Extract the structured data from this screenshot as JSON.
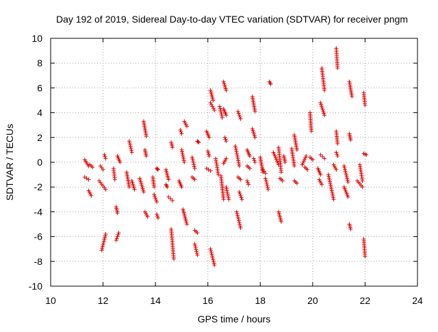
{
  "chart_data": {
    "type": "scatter",
    "title": "Day 192 of 2019, Sidereal Day-to-day VTEC variation (SDTVAR) for receiver pngm",
    "xlabel": "GPS time / hours",
    "ylabel": "SDTVAR / TECUs",
    "xlim": [
      10,
      24
    ],
    "ylim": [
      -10,
      10
    ],
    "xticks": [
      "10",
      "12",
      "14",
      "16",
      "18",
      "20",
      "22",
      "24"
    ],
    "yticks": [
      "10",
      "8",
      "6",
      "4",
      "2",
      "0",
      "-2",
      "-4",
      "-6",
      "-8",
      "-10"
    ],
    "grid": true,
    "marker": "+",
    "color": "#e00000",
    "series": [
      {
        "name": "SDTVAR",
        "tracks": [
          [
            11.3,
            0.2,
            11.45,
            -0.3
          ],
          [
            11.3,
            -1.2,
            11.45,
            -1.4
          ],
          [
            11.45,
            -2.3,
            11.55,
            -2.7
          ],
          [
            11.5,
            -0.2,
            11.6,
            -0.4
          ],
          [
            11.9,
            -0.3,
            12.0,
            -0.6
          ],
          [
            11.85,
            -1.5,
            12.1,
            -2.2
          ],
          [
            11.95,
            -7.1,
            12.1,
            -5.8
          ],
          [
            12.05,
            0.6,
            12.1,
            0.3
          ],
          [
            12.4,
            -0.5,
            12.45,
            -1.4
          ],
          [
            12.5,
            -3.6,
            12.55,
            -4.1
          ],
          [
            12.5,
            -6.3,
            12.6,
            -5.7
          ],
          [
            12.55,
            0.5,
            12.65,
            0.0
          ],
          [
            12.9,
            -0.8,
            13.0,
            -2.0
          ],
          [
            13.0,
            1.7,
            13.1,
            0.8
          ],
          [
            13.1,
            -1.5,
            13.2,
            -2.2
          ],
          [
            13.4,
            -1.3,
            13.55,
            -2.4
          ],
          [
            13.55,
            3.3,
            13.65,
            2.1
          ],
          [
            13.6,
            1.0,
            13.65,
            0.5
          ],
          [
            13.6,
            -4.0,
            13.7,
            -4.4
          ],
          [
            13.9,
            -1.2,
            13.95,
            -2.0
          ],
          [
            13.95,
            -2.6,
            14.05,
            -3.2
          ],
          [
            14.05,
            -4.2,
            14.1,
            -4.5
          ],
          [
            14.05,
            -0.5,
            14.1,
            -0.6
          ],
          [
            14.4,
            -0.6,
            14.5,
            -1.4
          ],
          [
            14.4,
            -1.8,
            14.45,
            -2.0
          ],
          [
            14.5,
            -2.8,
            14.65,
            -3.1
          ],
          [
            14.6,
            -5.4,
            14.7,
            -7.8
          ],
          [
            14.6,
            1.6,
            14.65,
            1.2
          ],
          [
            14.9,
            -1.5,
            15.0,
            -2.0
          ],
          [
            14.95,
            2.6,
            15.0,
            2.3
          ],
          [
            15.0,
            1.0,
            15.1,
            0.0
          ],
          [
            15.1,
            3.3,
            15.2,
            2.9
          ],
          [
            15.05,
            -3.8,
            15.2,
            -5.0
          ],
          [
            15.4,
            0.4,
            15.5,
            -0.5
          ],
          [
            15.4,
            -1.2,
            15.5,
            -1.4
          ],
          [
            15.6,
            1.7,
            15.65,
            1.6
          ],
          [
            15.5,
            -5.5,
            15.6,
            -5.7
          ],
          [
            15.5,
            -6.6,
            15.6,
            -7.5
          ],
          [
            15.95,
            2.5,
            16.05,
            2.0
          ],
          [
            16.0,
            0.9,
            16.05,
            0.5
          ],
          [
            15.95,
            -0.5,
            16.1,
            -0.7
          ],
          [
            16.1,
            5.8,
            16.2,
            5.0
          ],
          [
            16.1,
            4.8,
            16.25,
            4.2
          ],
          [
            16.1,
            -7.0,
            16.25,
            -8.3
          ],
          [
            16.3,
            0.3,
            16.4,
            -1.0
          ],
          [
            16.5,
            -1.1,
            16.6,
            -3.0
          ],
          [
            16.45,
            4.5,
            16.55,
            3.6
          ],
          [
            16.6,
            6.5,
            16.7,
            5.8
          ],
          [
            16.6,
            4.3,
            16.7,
            3.8
          ],
          [
            16.65,
            2.0,
            16.7,
            1.7
          ],
          [
            16.7,
            -2.0,
            16.8,
            -3.0
          ],
          [
            16.6,
            -0.1,
            16.7,
            0.3
          ],
          [
            17.05,
            1.3,
            17.2,
            -0.3
          ],
          [
            17.15,
            -1.2,
            17.25,
            -1.4
          ],
          [
            17.15,
            4.1,
            17.25,
            3.5
          ],
          [
            17.1,
            -4.0,
            17.25,
            -5.3
          ],
          [
            17.2,
            -2.4,
            17.3,
            -3.0
          ],
          [
            17.5,
            1.0,
            17.6,
            0.5
          ],
          [
            17.5,
            -0.3,
            17.6,
            -0.5
          ],
          [
            17.5,
            -1.5,
            17.55,
            -1.8
          ],
          [
            17.7,
            5.3,
            17.8,
            4.1
          ],
          [
            17.7,
            2.7,
            17.8,
            2.0
          ],
          [
            17.75,
            0.3,
            17.8,
            0.0
          ],
          [
            18.0,
            0.4,
            18.1,
            -0.8
          ],
          [
            18.1,
            -0.6,
            18.2,
            -0.9
          ],
          [
            18.2,
            -1.3,
            18.3,
            -2.2
          ],
          [
            18.35,
            6.5,
            18.4,
            6.3
          ],
          [
            18.5,
            0.8,
            18.7,
            -0.2
          ],
          [
            18.7,
            1.2,
            18.8,
            -0.8
          ],
          [
            18.7,
            -4.0,
            18.8,
            -4.8
          ],
          [
            18.75,
            -1.3,
            18.85,
            -1.5
          ],
          [
            18.9,
            0.5,
            18.95,
            0.0
          ],
          [
            19.2,
            1.1,
            19.3,
            -0.3
          ],
          [
            19.3,
            2.2,
            19.4,
            1.0
          ],
          [
            19.3,
            -1.5,
            19.4,
            -1.7
          ],
          [
            19.6,
            -0.2,
            19.75,
            0.5
          ],
          [
            19.7,
            -0.4,
            19.8,
            -0.6
          ],
          [
            19.9,
            4.0,
            19.95,
            2.5
          ],
          [
            19.9,
            0.4,
            20.0,
            0.2
          ],
          [
            20.2,
            -0.5,
            20.3,
            -1.0
          ],
          [
            20.25,
            -1.4,
            20.35,
            -1.8
          ],
          [
            20.3,
            0.6,
            20.45,
            0.3
          ],
          [
            20.35,
            7.6,
            20.45,
            5.8
          ],
          [
            20.3,
            4.8,
            20.45,
            3.8
          ],
          [
            20.6,
            -1.0,
            20.8,
            -3.0
          ],
          [
            20.8,
            -0.2,
            20.9,
            -0.6
          ],
          [
            20.9,
            9.2,
            20.95,
            7.6
          ],
          [
            20.9,
            2.5,
            20.95,
            1.5
          ],
          [
            20.9,
            0.8,
            20.95,
            0.5
          ],
          [
            21.2,
            -0.3,
            21.35,
            -1.6
          ],
          [
            21.2,
            -2.0,
            21.35,
            -2.8
          ],
          [
            21.4,
            6.5,
            21.5,
            5.3
          ],
          [
            21.4,
            2.3,
            21.45,
            1.8
          ],
          [
            21.4,
            -5.0,
            21.45,
            -5.4
          ],
          [
            21.8,
            -0.2,
            21.9,
            -1.5
          ],
          [
            21.7,
            -1.5,
            21.9,
            -2.0
          ],
          [
            21.95,
            5.6,
            22.0,
            4.6
          ],
          [
            21.95,
            0.7,
            22.05,
            0.6
          ],
          [
            21.95,
            -6.2,
            22.0,
            -7.6
          ]
        ]
      }
    ]
  }
}
